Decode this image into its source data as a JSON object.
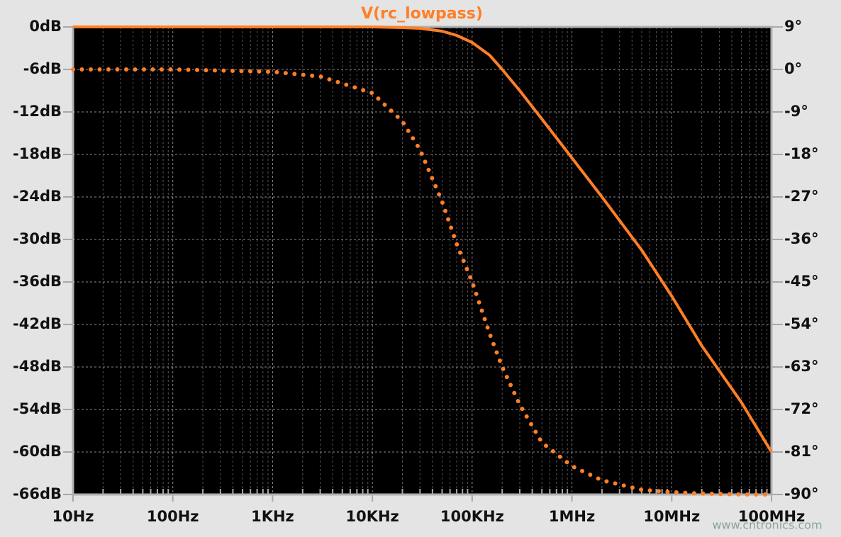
{
  "chart_data": {
    "type": "line",
    "title": "V(rc_lowpass)",
    "watermark": "www.cntronics.com",
    "x": [
      10,
      100,
      1000,
      3000,
      10000,
      20000,
      30000,
      50000,
      70000,
      100000,
      150000,
      200000,
      300000,
      500000,
      1000000,
      2000000,
      5000000,
      10000000,
      20000000,
      50000000,
      100000000
    ],
    "series": [
      {
        "color": "#ff7f27",
        "style": "solid",
        "axis": "y",
        "values": [
          0,
          0,
          0,
          0,
          0,
          -0.1,
          -0.2,
          -0.6,
          -1.2,
          -2.2,
          -4,
          -6,
          -9,
          -13,
          -18.5,
          -24,
          -31.5,
          -38,
          -45,
          -53,
          -60
        ]
      },
      {
        "color": "#ff7f27",
        "style": "dotted",
        "axis": "y2",
        "values": [
          0,
          0,
          -0.5,
          -1.5,
          -5,
          -11,
          -17,
          -28,
          -37,
          -45,
          -56,
          -63,
          -71,
          -79,
          -84,
          -87,
          -89,
          -89.5,
          -89.8,
          -90,
          -90
        ]
      }
    ],
    "xscale": "log",
    "xlim": [
      10,
      100000000
    ],
    "xticks": [
      {
        "value": 10,
        "label": "10Hz"
      },
      {
        "value": 100,
        "label": "100Hz"
      },
      {
        "value": 1000,
        "label": "1KHz"
      },
      {
        "value": 10000,
        "label": "10KHz"
      },
      {
        "value": 100000,
        "label": "100KHz"
      },
      {
        "value": 1000000,
        "label": "1MHz"
      },
      {
        "value": 10000000,
        "label": "10MHz"
      },
      {
        "value": 100000000,
        "label": "100MHz"
      }
    ],
    "ylim": [
      -66,
      0
    ],
    "yticks": [
      {
        "value": 0,
        "label": "0dB"
      },
      {
        "value": -6,
        "label": "-6dB"
      },
      {
        "value": -12,
        "label": "-12dB"
      },
      {
        "value": -18,
        "label": "-18dB"
      },
      {
        "value": -24,
        "label": "-24dB"
      },
      {
        "value": -30,
        "label": "-30dB"
      },
      {
        "value": -36,
        "label": "-36dB"
      },
      {
        "value": -42,
        "label": "-42dB"
      },
      {
        "value": -48,
        "label": "-48dB"
      },
      {
        "value": -54,
        "label": "-54dB"
      },
      {
        "value": -60,
        "label": "-60dB"
      },
      {
        "value": -66,
        "label": "-66dB"
      }
    ],
    "y2lim": [
      -90,
      9
    ],
    "y2ticks": [
      {
        "value": 9,
        "label": "9°"
      },
      {
        "value": 0,
        "label": "0°"
      },
      {
        "value": -9,
        "label": "-9°"
      },
      {
        "value": -18,
        "label": "-18°"
      },
      {
        "value": -27,
        "label": "-27°"
      },
      {
        "value": -36,
        "label": "-36°"
      },
      {
        "value": -45,
        "label": "-45°"
      },
      {
        "value": -54,
        "label": "-54°"
      },
      {
        "value": -63,
        "label": "-63°"
      },
      {
        "value": -72,
        "label": "-72°"
      },
      {
        "value": -81,
        "label": "-81°"
      },
      {
        "value": -90,
        "label": "-90°"
      }
    ],
    "grid": true
  }
}
